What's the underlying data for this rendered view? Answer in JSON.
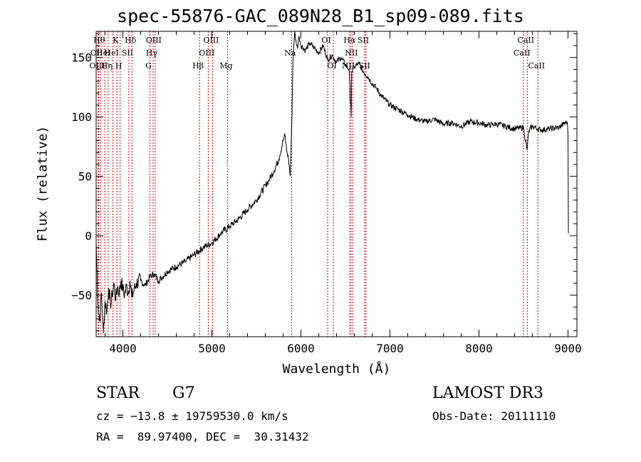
{
  "chart_data": {
    "type": "line",
    "title": "spec-55876-GAC_089N28_B1_sp09-089.fits",
    "xlabel": "Wavelength (Å)",
    "ylabel": "Flux (relative)",
    "xlim": [
      3700,
      9100
    ],
    "ylim": [
      -85,
      172
    ],
    "xticks": [
      4000,
      5000,
      6000,
      7000,
      8000,
      9000
    ],
    "yticks": [
      -50,
      0,
      50,
      100,
      150
    ],
    "series": [
      {
        "name": "flux",
        "x": [
          3700,
          3720,
          3740,
          3760,
          3780,
          3800,
          3820,
          3840,
          3860,
          3880,
          3900,
          3920,
          3940,
          3960,
          3980,
          4000,
          4020,
          4040,
          4060,
          4080,
          4100,
          4150,
          4200,
          4250,
          4300,
          4350,
          4400,
          4500,
          4600,
          4700,
          4800,
          4900,
          5000,
          5100,
          5200,
          5300,
          5400,
          5500,
          5600,
          5650,
          5700,
          5750,
          5800,
          5820,
          5840,
          5860,
          5880,
          5900,
          5910,
          5920,
          5930,
          5940,
          5960,
          5980,
          6000,
          6050,
          6100,
          6150,
          6200,
          6250,
          6300,
          6350,
          6400,
          6450,
          6500,
          6540,
          6560,
          6565,
          6570,
          6600,
          6650,
          6700,
          6750,
          6800,
          6850,
          6900,
          7000,
          7100,
          7200,
          7300,
          7400,
          7500,
          7600,
          7700,
          7800,
          7900,
          8000,
          8100,
          8200,
          8300,
          8400,
          8500,
          8540,
          8560,
          8600,
          8662,
          8700,
          8800,
          8900,
          8950,
          8990,
          9000,
          9005
        ],
        "y": [
          -5,
          -58,
          -72,
          -48,
          -82,
          -55,
          -64,
          -44,
          -58,
          -50,
          -40,
          -54,
          -43,
          -48,
          -38,
          -45,
          -50,
          -42,
          -48,
          -38,
          -52,
          -40,
          -38,
          -42,
          -35,
          -32,
          -38,
          -30,
          -26,
          -22,
          -16,
          -10,
          -6,
          2,
          8,
          14,
          22,
          30,
          42,
          48,
          55,
          64,
          80,
          85,
          72,
          65,
          50,
          102,
          145,
          160,
          172,
          165,
          158,
          168,
          160,
          156,
          162,
          158,
          154,
          160,
          148,
          152,
          146,
          150,
          144,
          140,
          110,
          100,
          138,
          142,
          145,
          138,
          134,
          128,
          124,
          118,
          110,
          106,
          102,
          98,
          96,
          98,
          94,
          95,
          92,
          96,
          95,
          93,
          94,
          92,
          90,
          91,
          72,
          88,
          92,
          90,
          89,
          90,
          91,
          94,
          96,
          85,
          2
        ]
      }
    ],
    "lines": [
      {
        "wave": 3722,
        "label": "OII",
        "row": 1
      },
      {
        "wave": 3727,
        "label": "OIII",
        "row": 2
      },
      {
        "wave": 3750,
        "label": "Hθ",
        "row": 0
      },
      {
        "wave": 3798,
        "label": "HeI",
        "row": 1
      },
      {
        "wave": 3835,
        "label": "Hη",
        "row": 2
      },
      {
        "wave": 3889,
        "label": "HeI",
        "row": 1
      },
      {
        "wave": 3934,
        "label": "K",
        "row": 0
      },
      {
        "wave": 3969,
        "label": "H",
        "row": 2
      },
      {
        "wave": 4068,
        "label": "SII",
        "row": 1
      },
      {
        "wave": 4102,
        "label": "Hδ",
        "row": 0
      },
      {
        "wave": 4304,
        "label": "G",
        "row": 2
      },
      {
        "wave": 4340,
        "label": "Hγ",
        "row": 1
      },
      {
        "wave": 4363,
        "label": "OIII",
        "row": 0
      },
      {
        "wave": 4861,
        "label": "Hβ",
        "row": 2
      },
      {
        "wave": 4959,
        "label": "OIII",
        "row": 1
      },
      {
        "wave": 5007,
        "label": "OIII",
        "row": 0
      },
      {
        "wave": 5175,
        "label": "Mg",
        "row": 2
      },
      {
        "wave": 5894,
        "label": "Na",
        "row": 1
      },
      {
        "wave": 6300,
        "label": "OI",
        "row": 0
      },
      {
        "wave": 6364,
        "label": "OI",
        "row": 2
      },
      {
        "wave": 6548,
        "label": "NII",
        "row": 2
      },
      {
        "wave": 6563,
        "label": "Hα",
        "row": 0
      },
      {
        "wave": 6583,
        "label": "NII",
        "row": 1
      },
      {
        "wave": 6716,
        "label": "SII",
        "row": 0
      },
      {
        "wave": 6731,
        "label": "SII",
        "row": 2
      },
      {
        "wave": 8498,
        "label": "CaII",
        "row": 1
      },
      {
        "wave": 8542,
        "label": "CaII",
        "row": 0
      },
      {
        "wave": 8662,
        "label": "CaII",
        "row": 2
      }
    ]
  },
  "info": {
    "class": "STAR",
    "subclass": "G7",
    "survey": "LAMOST DR3",
    "cz": "cz = −13.8 ± 19759530.0 km/s",
    "obs_date": "Obs-Date: 20111110",
    "radec": "RA =  89.97400, DEC =  30.31432"
  },
  "colors": {
    "line_markers": "#cc0000",
    "spectrum": "#000000"
  }
}
